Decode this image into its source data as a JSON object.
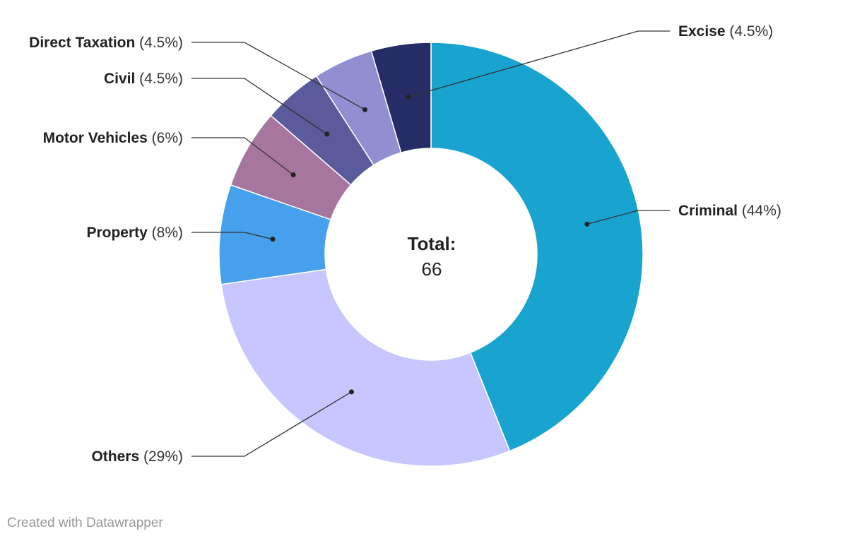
{
  "chart_data": {
    "type": "pie",
    "donut": true,
    "slices": [
      {
        "label": "Criminal",
        "value": 29,
        "pct_label": "(44%)",
        "color": "#19a3cf"
      },
      {
        "label": "Others",
        "value": 19,
        "pct_label": "(29%)",
        "color": "#c7c6ff"
      },
      {
        "label": "Property",
        "value": 5,
        "pct_label": "(8%)",
        "color": "#46a0ec"
      },
      {
        "label": "Motor Vehicles",
        "value": 4,
        "pct_label": "(6%)",
        "color": "#a676a1"
      },
      {
        "label": "Civil",
        "value": 3,
        "pct_label": "(4.5%)",
        "color": "#5a5b9a"
      },
      {
        "label": "Direct Taxation",
        "value": 3,
        "pct_label": "(4.5%)",
        "color": "#8f8fd2"
      },
      {
        "label": "Excise",
        "value": 3,
        "pct_label": "(4.5%)",
        "color": "#262d66"
      }
    ],
    "center_title": "Total:",
    "center_value": "66"
  },
  "footer": {
    "credit": "Created with Datawrapper"
  }
}
